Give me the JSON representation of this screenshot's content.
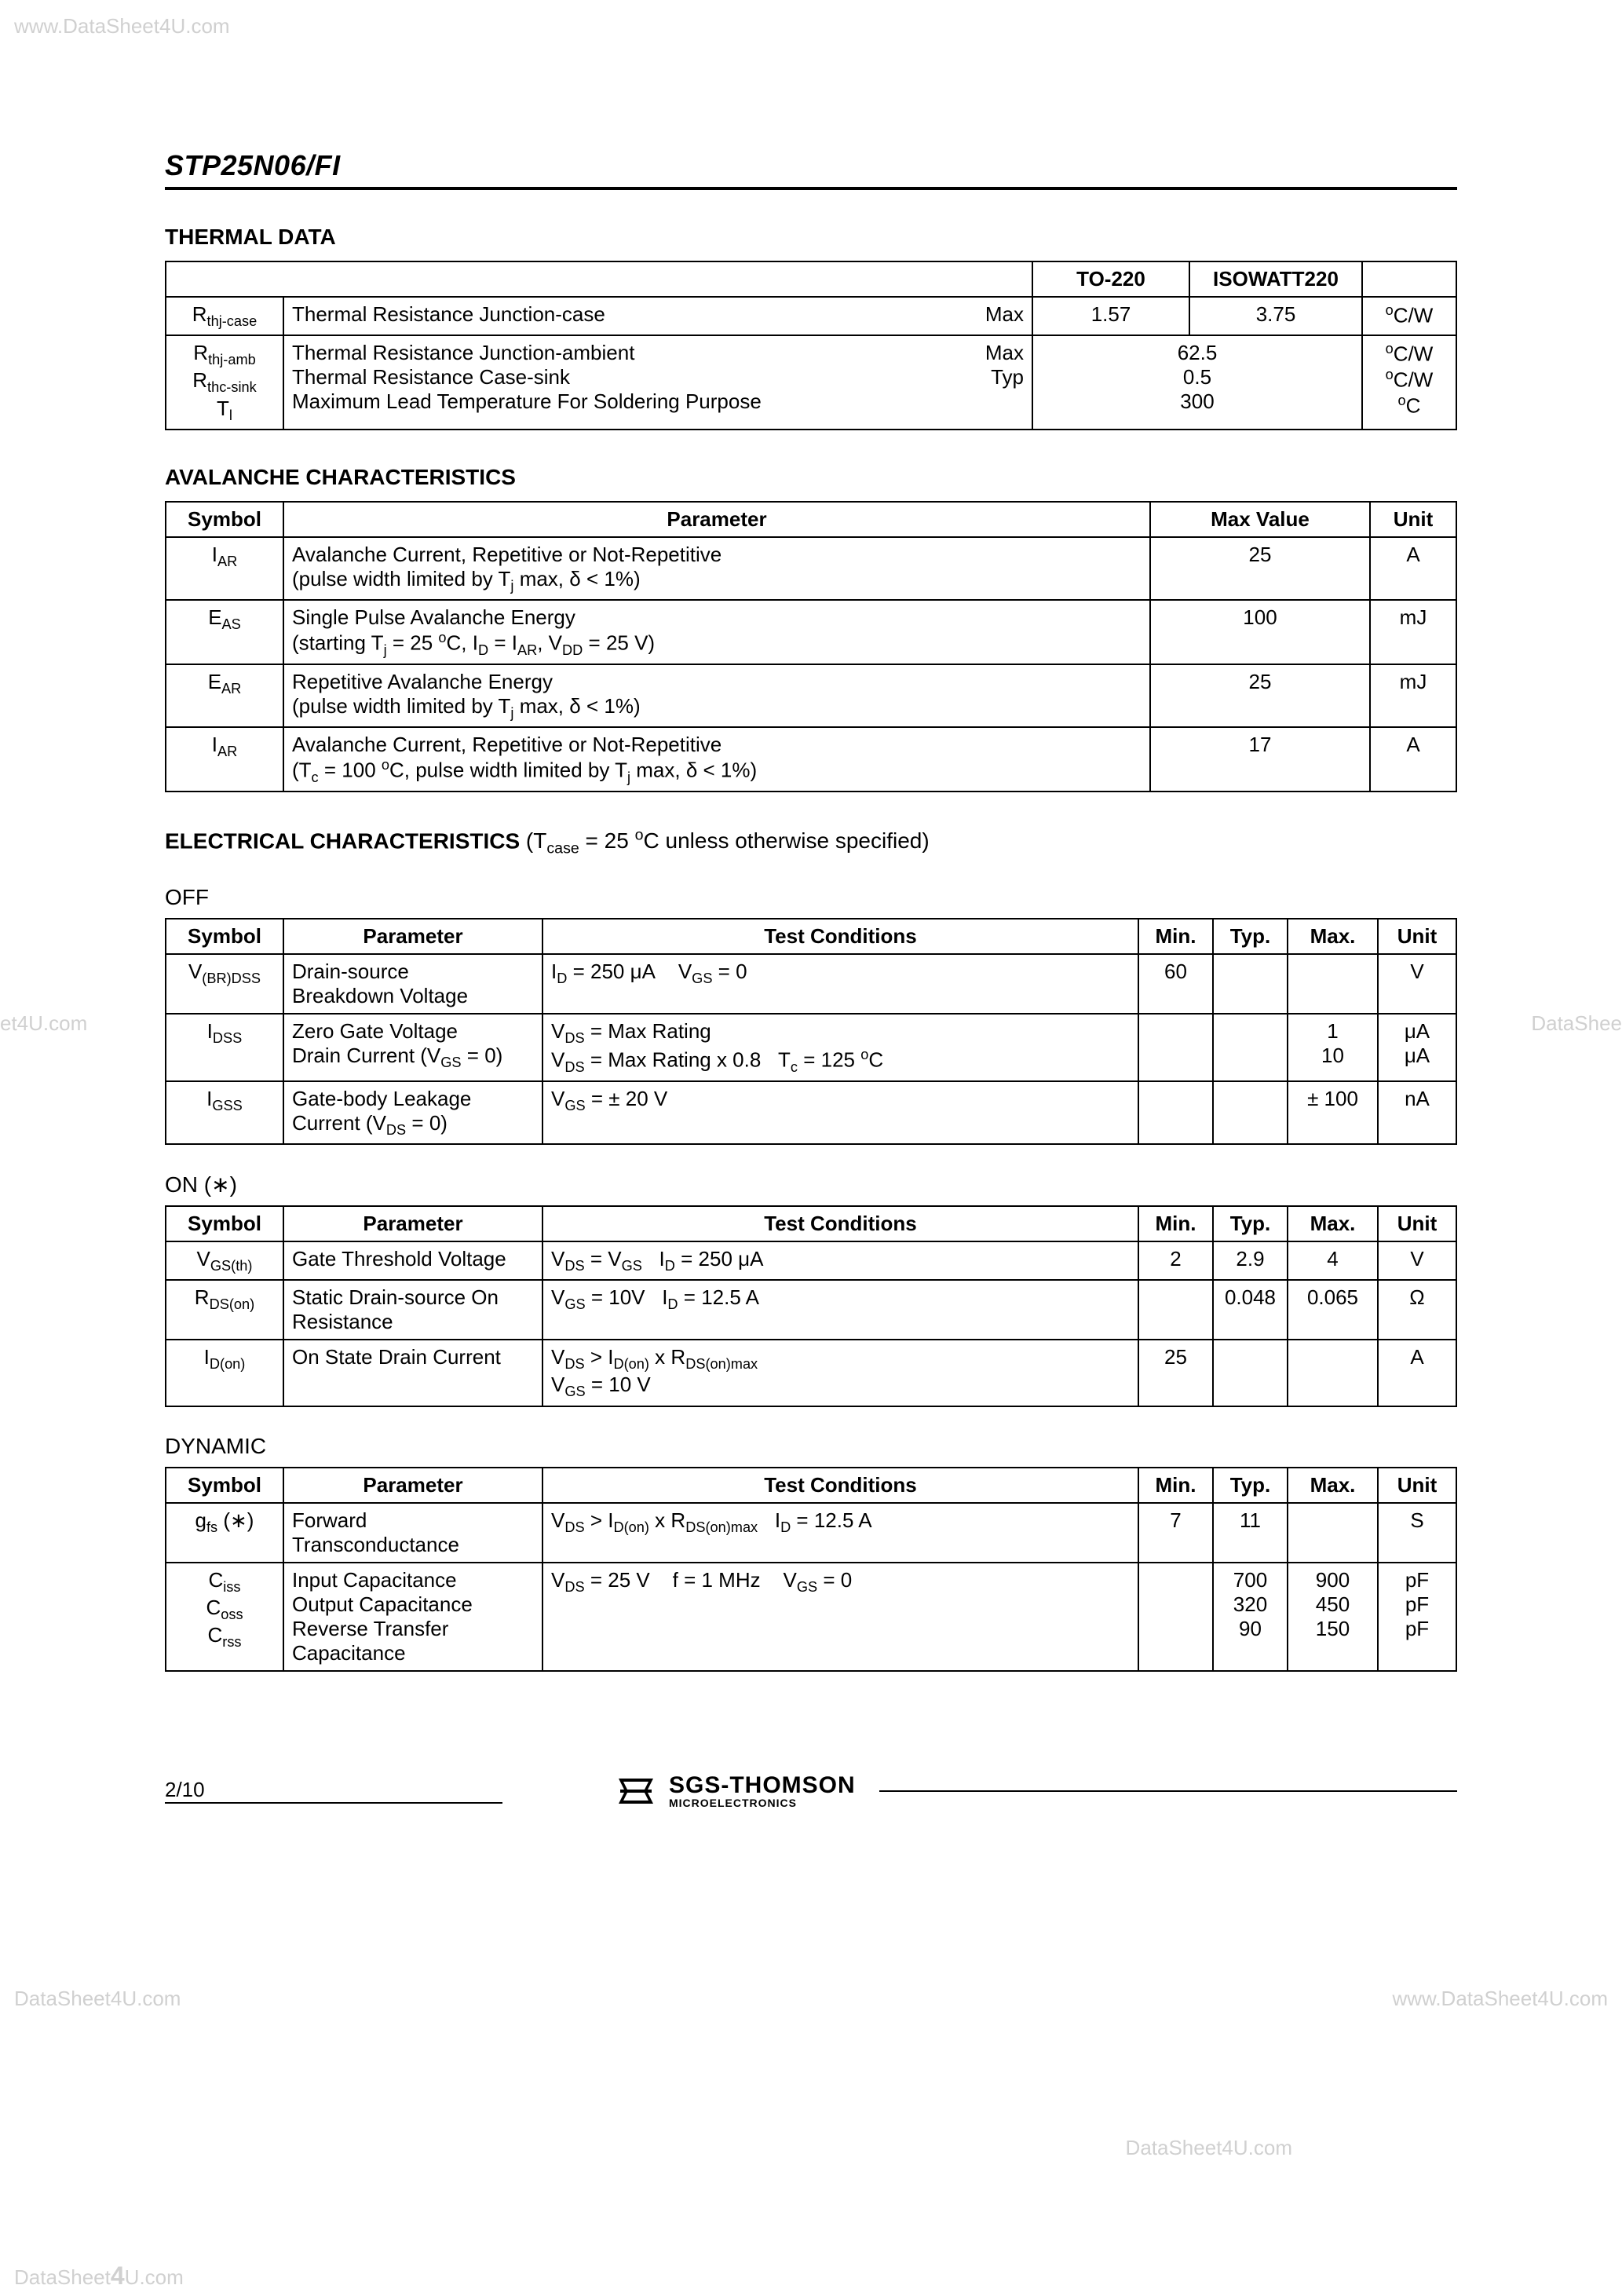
{
  "watermarks": {
    "top_left": "www.DataSheet4U.com",
    "mid_left": "et4U.com",
    "mid_right": "DataShee",
    "bottom_left1": "DataSheet4U.com",
    "bottom_left2": "DataSheet4U.com",
    "bottom_right1": "www.DataSheet4U.com",
    "bottom_right2": "DataSheet4U.com"
  },
  "part_number": "STP25N06/FI",
  "thermal": {
    "title": "THERMAL  DATA",
    "headers": {
      "pkg1": "TO-220",
      "pkg2": "ISOWATT220"
    },
    "rows": [
      {
        "sym": "R",
        "sub": "thj-case",
        "param": "Thermal  Resistance  Junction-case",
        "qual": "Max",
        "v1": "1.57",
        "v2": "3.75",
        "unit_pre": "o",
        "unit": "C/W"
      }
    ],
    "group": {
      "syms": [
        {
          "s": "R",
          "sub": "thj-amb"
        },
        {
          "s": "R",
          "sub": "thc-sink"
        },
        {
          "s": "T",
          "sub": "l"
        }
      ],
      "params": [
        "Thermal  Resistance  Junction-ambient",
        "Thermal  Resistance  Case-sink",
        "Maximum Lead Temperature For Soldering Purpose"
      ],
      "quals": [
        "Max",
        "Typ",
        ""
      ],
      "vals": [
        "62.5",
        "0.5",
        "300"
      ],
      "units": [
        {
          "pre": "o",
          "u": "C/W"
        },
        {
          "pre": "o",
          "u": "C/W"
        },
        {
          "pre": "o",
          "u": "C"
        }
      ]
    }
  },
  "avalanche": {
    "title": "AVALANCHE  CHARACTERISTICS",
    "headers": {
      "symbol": "Symbol",
      "parameter": "Parameter",
      "max": "Max  Value",
      "unit": "Unit"
    },
    "rows": [
      {
        "sym_s": "I",
        "sym_sub": "AR",
        "p1": "Avalanche Current, Repetitive or Not-Repetitive",
        "p2_pre": "(pulse width limited by T",
        "p2_sub": "j",
        "p2_post": " max, δ < 1%)",
        "val": "25",
        "unit": "A"
      },
      {
        "sym_s": "E",
        "sym_sub": "AS",
        "p1": "Single Pulse Avalanche Energy",
        "p2_html": "(starting T<sub>j</sub> = 25 <sup>o</sup>C, I<sub>D</sub> = I<sub>AR</sub>, V<sub>DD</sub> = 25 V)",
        "val": "100",
        "unit": "mJ"
      },
      {
        "sym_s": "E",
        "sym_sub": "AR",
        "p1": "Repetitive Avalanche Energy",
        "p2_html": "(pulse width limited by T<sub>j</sub> max, δ < 1%)",
        "val": "25",
        "unit": "mJ"
      },
      {
        "sym_s": "I",
        "sym_sub": "AR",
        "p1": "Avalanche Current, Repetitive or Not-Repetitive",
        "p2_html": "(T<sub>c</sub> = 100 <sup>o</sup>C, pulse width limited by T<sub>j</sub> max, δ < 1%)",
        "val": "17",
        "unit": "A"
      }
    ]
  },
  "electrical": {
    "title": "ELECTRICAL  CHARACTERISTICS",
    "cond": "  (T<sub>case</sub> = 25 <sup>o</sup>C unless otherwise specified)",
    "headers": {
      "symbol": "Symbol",
      "parameter": "Parameter",
      "test": "Test Conditions",
      "min": "Min.",
      "typ": "Typ.",
      "max": "Max.",
      "unit": "Unit"
    },
    "off": {
      "title": "OFF",
      "rows": [
        {
          "sym": "V<sub>(BR)DSS</sub>",
          "param": "Drain-source<br>Breakdown Voltage",
          "test": "I<sub>D</sub> = 250 μA&nbsp;&nbsp;&nbsp;&nbsp;V<sub>GS</sub> = 0",
          "min": "60",
          "typ": "",
          "max": "",
          "unit": "V"
        },
        {
          "sym": "I<sub>DSS</sub>",
          "param": "Zero Gate Voltage<br>Drain Current (V<sub>GS</sub> = 0)",
          "test": "V<sub>DS</sub> = Max Rating<br>V<sub>DS</sub> = Max Rating x 0.8&nbsp;&nbsp;&nbsp;T<sub>c</sub> = 125 <sup>o</sup>C",
          "min": "",
          "typ": "",
          "max": "1<br>10",
          "unit": "μA<br>μA"
        },
        {
          "sym": "I<sub>GSS</sub>",
          "param": "Gate-body Leakage<br>Current (V<sub>DS</sub> = 0)",
          "test": "V<sub>GS</sub> = ± 20 V",
          "min": "",
          "typ": "",
          "max": "± 100",
          "unit": "nA"
        }
      ]
    },
    "on": {
      "title": "ON (∗)",
      "rows": [
        {
          "sym": "V<sub>GS(th)</sub>",
          "param": "Gate Threshold Voltage",
          "test": "V<sub>DS</sub> = V<sub>GS</sub>&nbsp;&nbsp;&nbsp;I<sub>D</sub> = 250 μA",
          "min": "2",
          "typ": "2.9",
          "max": "4",
          "unit": "V"
        },
        {
          "sym": "R<sub>DS(on)</sub>",
          "param": "Static Drain-source On<br>Resistance",
          "test": "V<sub>GS</sub> = 10V&nbsp;&nbsp;&nbsp;I<sub>D</sub> = 12.5 A",
          "min": "",
          "typ": "0.048",
          "max": "0.065",
          "unit": "Ω"
        },
        {
          "sym": "I<sub>D(on)</sub>",
          "param": "On State Drain Current",
          "test": "V<sub>DS</sub> > I<sub>D(on)</sub> x R<sub>DS(on)max</sub><br>V<sub>GS</sub> = 10 V",
          "min": "25",
          "typ": "",
          "max": "",
          "unit": "A"
        }
      ]
    },
    "dynamic": {
      "title": "DYNAMIC",
      "rows": [
        {
          "sym": "g<sub>fs</sub> (∗)",
          "param": "Forward<br>Transconductance",
          "test": "V<sub>DS</sub> > I<sub>D(on)</sub> x R<sub>DS(on)max</sub>&nbsp;&nbsp;&nbsp;I<sub>D</sub> = 12.5 A",
          "min": "7",
          "typ": "11",
          "max": "",
          "unit": "S"
        },
        {
          "sym": "C<sub>iss</sub><br>C<sub>oss</sub><br>C<sub>rss</sub>",
          "param": "Input Capacitance<br>Output Capacitance<br>Reverse Transfer<br>Capacitance",
          "test": "V<sub>DS</sub> = 25 V&nbsp;&nbsp;&nbsp;&nbsp;f = 1 MHz&nbsp;&nbsp;&nbsp;&nbsp;V<sub>GS</sub> = 0",
          "min": "",
          "typ": "700<br>320<br>90",
          "max": "900<br>450<br>150",
          "unit": "pF<br>pF<br>pF"
        }
      ]
    }
  },
  "footer": {
    "page": "2/10",
    "logo_l1": "SGS-THOMSON",
    "logo_l2": "MICROELECTRONICS"
  },
  "layout": {
    "col_widths": {
      "thermal": [
        "150px",
        "auto",
        "70px",
        "180px",
        "200px",
        "120px"
      ],
      "avalanche": [
        "150px",
        "auto",
        "260px",
        "110px"
      ],
      "elec": [
        "150px",
        "320px",
        "auto",
        "95px",
        "95px",
        "110px",
        "95px"
      ]
    },
    "colors": {
      "text": "#000000",
      "border": "#000000",
      "bg": "#ffffff",
      "wm": "#d0d0d0"
    }
  }
}
